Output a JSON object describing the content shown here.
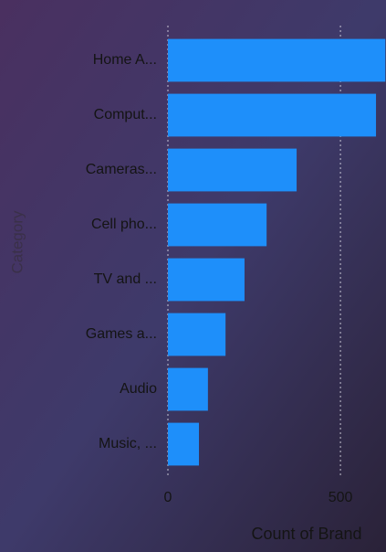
{
  "chart_data": {
    "type": "hbar",
    "categories": [
      "Home A...",
      "Comput...",
      "Cameras...",
      "Cell pho...",
      "TV and ...",
      "Games a...",
      "Audio",
      "Music, ..."
    ],
    "values": [
      630,
      603,
      373,
      286,
      222,
      167,
      116,
      90
    ],
    "color": "#1e8ffa",
    "xlim": [
      0,
      632
    ],
    "xticks": [
      0,
      500
    ],
    "grid": true,
    "x_label": "Count of Brand",
    "y_label": "Category"
  }
}
